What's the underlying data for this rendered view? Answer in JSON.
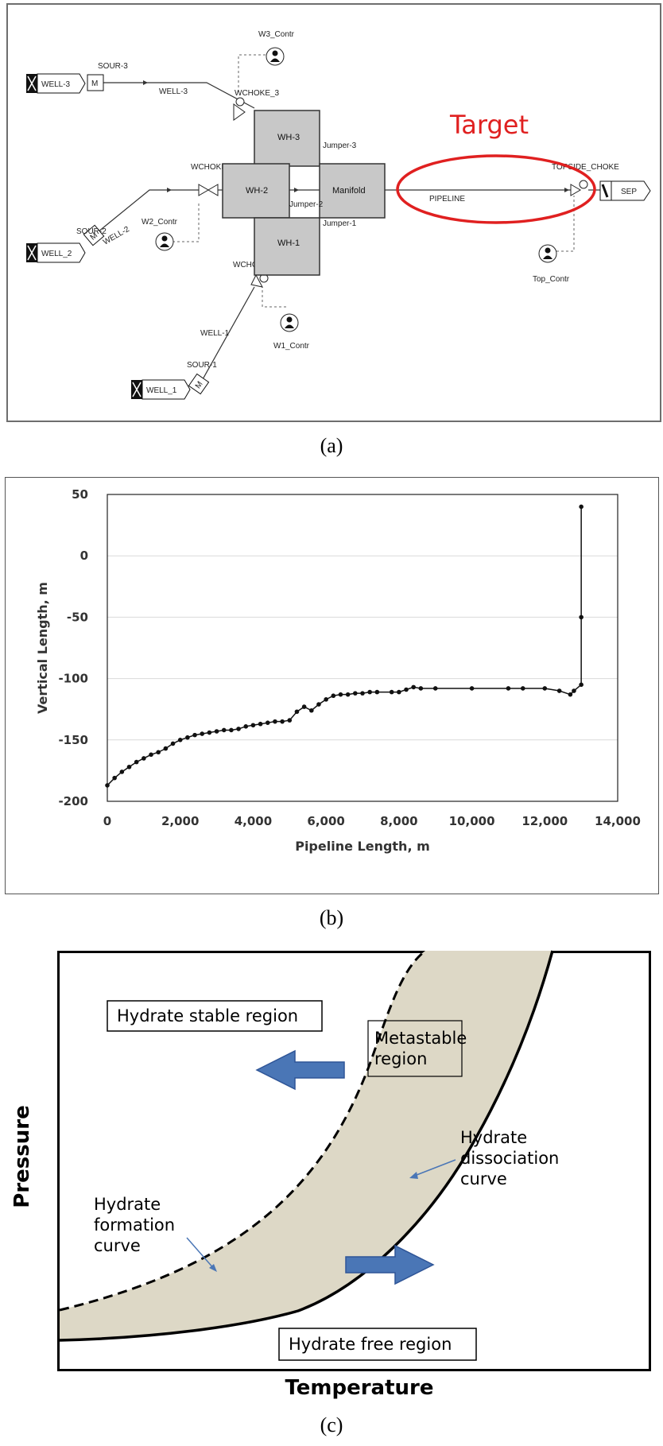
{
  "diagram_a": {
    "wells": [
      {
        "id": "well-3",
        "label": "WELL-3",
        "source": "SOUR-3",
        "line": "WELL-3",
        "choke": "WCHOKE_3"
      },
      {
        "id": "well-2",
        "label": "WELL_2",
        "source": "SOUR-2",
        "line": "WELL-2",
        "choke": "WCHOKE_2"
      },
      {
        "id": "well-1",
        "label": "WELL_1",
        "source": "SOUR-1",
        "line": "WELL-1",
        "choke": "WCHOKE_1"
      }
    ],
    "source_marker": "M",
    "wellhead_labels": [
      "WH-3",
      "WH-2",
      "WH-1"
    ],
    "manifold": "Manifold",
    "jumpers": [
      "Jumper-3",
      "Jumper-2",
      "Jumper-1"
    ],
    "pipeline": "PIPELINE",
    "topside_choke": "TOPSIDE_CHOKE",
    "separator": "SEP",
    "controllers": [
      "W3_Contr",
      "W2_Contr",
      "W1_Contr",
      "Top_Contr"
    ],
    "target_label": "Target",
    "colors": {
      "target": "#e02020",
      "wellhead": "#c8c8c8"
    }
  },
  "caption_a": "(a)",
  "chart_b": {
    "chart_data": {
      "type": "line",
      "xlabel": "Pipeline Length, m",
      "ylabel": "Vertical Length, m",
      "xlim": [
        0,
        14000
      ],
      "ylim": [
        -200,
        50
      ],
      "xticks": [
        "0",
        "2,000",
        "4,000",
        "6,000",
        "8,000",
        "10,000",
        "12,000",
        "14,000"
      ],
      "yticks": [
        "50",
        "0",
        "-50",
        "-100",
        "-150",
        "-200"
      ],
      "grid": "horizontal",
      "series": [
        {
          "points": [
            [
              0,
              -187
            ],
            [
              200,
              -181
            ],
            [
              400,
              -176
            ],
            [
              600,
              -172
            ],
            [
              800,
              -168
            ],
            [
              1000,
              -165
            ],
            [
              1200,
              -162
            ],
            [
              1400,
              -160
            ],
            [
              1600,
              -157
            ],
            [
              1800,
              -153
            ],
            [
              2000,
              -150
            ],
            [
              2200,
              -148
            ],
            [
              2400,
              -146
            ],
            [
              2600,
              -145
            ],
            [
              2800,
              -144
            ],
            [
              3000,
              -143
            ],
            [
              3200,
              -142
            ],
            [
              3400,
              -142
            ],
            [
              3600,
              -141
            ],
            [
              3800,
              -139
            ],
            [
              4000,
              -138
            ],
            [
              4200,
              -137
            ],
            [
              4400,
              -136
            ],
            [
              4600,
              -135
            ],
            [
              4800,
              -135
            ],
            [
              5000,
              -134
            ],
            [
              5200,
              -127
            ],
            [
              5400,
              -123
            ],
            [
              5600,
              -126
            ],
            [
              5800,
              -121
            ],
            [
              6000,
              -117
            ],
            [
              6200,
              -114
            ],
            [
              6400,
              -113
            ],
            [
              6600,
              -113
            ],
            [
              6800,
              -112
            ],
            [
              7000,
              -112
            ],
            [
              7200,
              -111
            ],
            [
              7400,
              -111
            ],
            [
              7800,
              -111
            ],
            [
              8000,
              -111
            ],
            [
              8200,
              -109
            ],
            [
              8400,
              -107
            ],
            [
              8600,
              -108
            ],
            [
              9000,
              -108
            ],
            [
              10000,
              -108
            ],
            [
              11000,
              -108
            ],
            [
              11400,
              -108
            ],
            [
              12000,
              -108
            ],
            [
              12400,
              -110
            ],
            [
              12700,
              -113
            ],
            [
              12800,
              -110
            ],
            [
              13000,
              -105
            ],
            [
              13000,
              -50
            ],
            [
              13000,
              40
            ]
          ]
        }
      ]
    }
  },
  "caption_b": "(b)",
  "diagram_c": {
    "boxes": {
      "stable": "Hydrate stable region",
      "metastable_1": "Metastable",
      "metastable_2": "region",
      "free": "Hydrate free region"
    },
    "formation_label": [
      "Hydrate",
      "formation",
      "curve"
    ],
    "dissociation_label": [
      "Hydrate",
      "dissociation",
      "curve"
    ],
    "xlabel": "Temperature",
    "ylabel": "Pressure",
    "colors": {
      "metastable_fill": "#ddd8c6",
      "arrow": "#4a76b6",
      "arrow_edge": "#2f5597"
    }
  },
  "caption_c": "(c)"
}
